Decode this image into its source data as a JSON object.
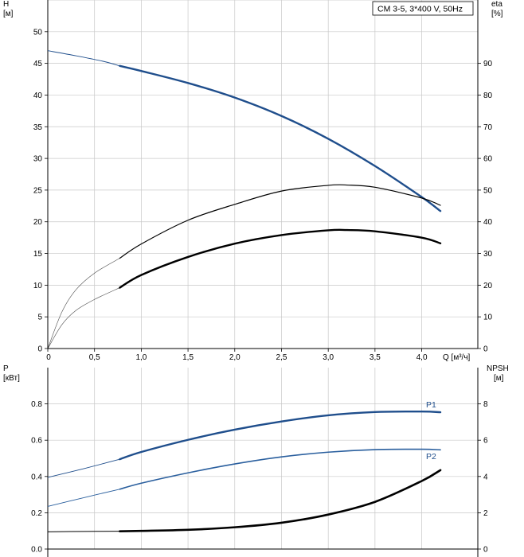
{
  "legend": {
    "model": "CM 3-5, 3*400 V, 50Hz"
  },
  "colors": {
    "head": "#1f4e8c",
    "p1": "#1f4e8c",
    "p2": "#2a5f9e",
    "eta": "#000000",
    "npsh": "#000000",
    "grid": "#c8c8c8"
  },
  "chart_data": [
    {
      "type": "line",
      "panel": "top",
      "x_axis": {
        "label": "Q [м³/ч]",
        "lim": [
          0,
          4.6
        ],
        "ticks": [
          "0",
          "0,5",
          "1,0",
          "1,5",
          "2,0",
          "2,5",
          "3,0",
          "3,5",
          "4,0"
        ],
        "tick_values": [
          0,
          0.5,
          1.0,
          1.5,
          2.0,
          2.5,
          3.0,
          3.5,
          4.0
        ]
      },
      "y_left": {
        "label": "H",
        "unit": "[м]",
        "lim": [
          0,
          55
        ],
        "ticks": [
          0,
          5,
          10,
          15,
          20,
          25,
          30,
          35,
          40,
          45,
          50
        ]
      },
      "y_right": {
        "label": "eta",
        "unit": "[%]",
        "lim": [
          0,
          110
        ],
        "ticks": [
          0,
          10,
          20,
          30,
          40,
          50,
          60,
          70,
          80,
          90
        ]
      },
      "grid": true,
      "series": [
        {
          "axis": "left",
          "extrapolated": {
            "x": [
              0,
              0.3,
              0.6,
              0.77
            ],
            "y": [
              47.0,
              46.2,
              45.3,
              44.6
            ]
          },
          "operating": {
            "x": [
              0.77,
              1.0,
              1.5,
              2.0,
              2.5,
              3.0,
              3.5,
              4.0,
              4.2
            ],
            "y": [
              44.6,
              43.8,
              41.9,
              39.6,
              36.7,
              33.1,
              28.8,
              23.9,
              21.7
            ]
          }
        },
        {
          "axis": "right",
          "extrapolated": {
            "x": [
              0,
              0.15,
              0.3,
              0.5,
              0.77
            ],
            "y": [
              0,
              11.5,
              18.5,
              23.8,
              28.5
            ]
          },
          "operating": {
            "x": [
              0.77,
              1.0,
              1.5,
              2.0,
              2.5,
              3.0,
              3.2,
              3.5,
              4.0,
              4.2
            ],
            "y": [
              28.5,
              33.0,
              40.5,
              45.5,
              49.7,
              51.5,
              51.6,
              50.9,
              47.5,
              45.2
            ]
          }
        },
        {
          "axis": "right",
          "extrapolated": {
            "x": [
              0,
              0.15,
              0.3,
              0.5,
              0.77
            ],
            "y": [
              0,
              7.5,
              12.0,
              15.5,
              19.2
            ]
          },
          "operating": {
            "x": [
              0.77,
              1.0,
              1.5,
              2.0,
              2.5,
              3.0,
              3.2,
              3.5,
              4.0,
              4.2
            ],
            "y": [
              19.2,
              23.2,
              28.9,
              33.1,
              35.8,
              37.3,
              37.4,
              37.0,
              35.0,
              33.2
            ]
          }
        }
      ]
    },
    {
      "type": "line",
      "panel": "bottom",
      "x_axis": {
        "lim": [
          0,
          4.6
        ]
      },
      "y_left": {
        "label": "P",
        "unit": "[кВт]",
        "lim": [
          0,
          1.0
        ],
        "ticks": [
          "0.0",
          "0.2",
          "0.4",
          "0.6",
          "0.8"
        ],
        "tick_values": [
          0,
          0.2,
          0.4,
          0.6,
          0.8
        ]
      },
      "y_right": {
        "label": "NPSH",
        "unit": "[м]",
        "lim": [
          0,
          10
        ],
        "ticks": [
          "0",
          "2",
          "4",
          "6",
          "8"
        ],
        "tick_values": [
          0,
          2,
          4,
          6,
          8
        ]
      },
      "grid": true,
      "series": [
        {
          "name": "P1",
          "axis": "left",
          "extrapolated": {
            "x": [
              0,
              0.4,
              0.77
            ],
            "y": [
              0.395,
              0.445,
              0.495
            ]
          },
          "operating": {
            "x": [
              0.77,
              1.0,
              1.5,
              2.0,
              2.5,
              3.0,
              3.5,
              4.0,
              4.2
            ],
            "y": [
              0.495,
              0.535,
              0.602,
              0.658,
              0.703,
              0.737,
              0.755,
              0.758,
              0.754
            ]
          }
        },
        {
          "name": "P2",
          "axis": "left",
          "extrapolated": {
            "x": [
              0,
              0.4,
              0.77
            ],
            "y": [
              0.235,
              0.285,
              0.33
            ]
          },
          "operating": {
            "x": [
              0.77,
              1.0,
              1.5,
              2.0,
              2.5,
              3.0,
              3.5,
              4.0,
              4.2
            ],
            "y": [
              0.33,
              0.363,
              0.42,
              0.469,
              0.508,
              0.534,
              0.548,
              0.55,
              0.547
            ]
          }
        },
        {
          "axis": "right",
          "extrapolated": {
            "x": [
              0,
              0.4,
              0.77
            ],
            "y": [
              0.95,
              0.97,
              0.98
            ]
          },
          "operating": {
            "x": [
              0.77,
              1.0,
              1.5,
              2.0,
              2.5,
              3.0,
              3.5,
              4.0,
              4.2
            ],
            "y": [
              0.98,
              1.0,
              1.06,
              1.2,
              1.45,
              1.9,
              2.6,
              3.75,
              4.35
            ]
          }
        }
      ]
    }
  ]
}
